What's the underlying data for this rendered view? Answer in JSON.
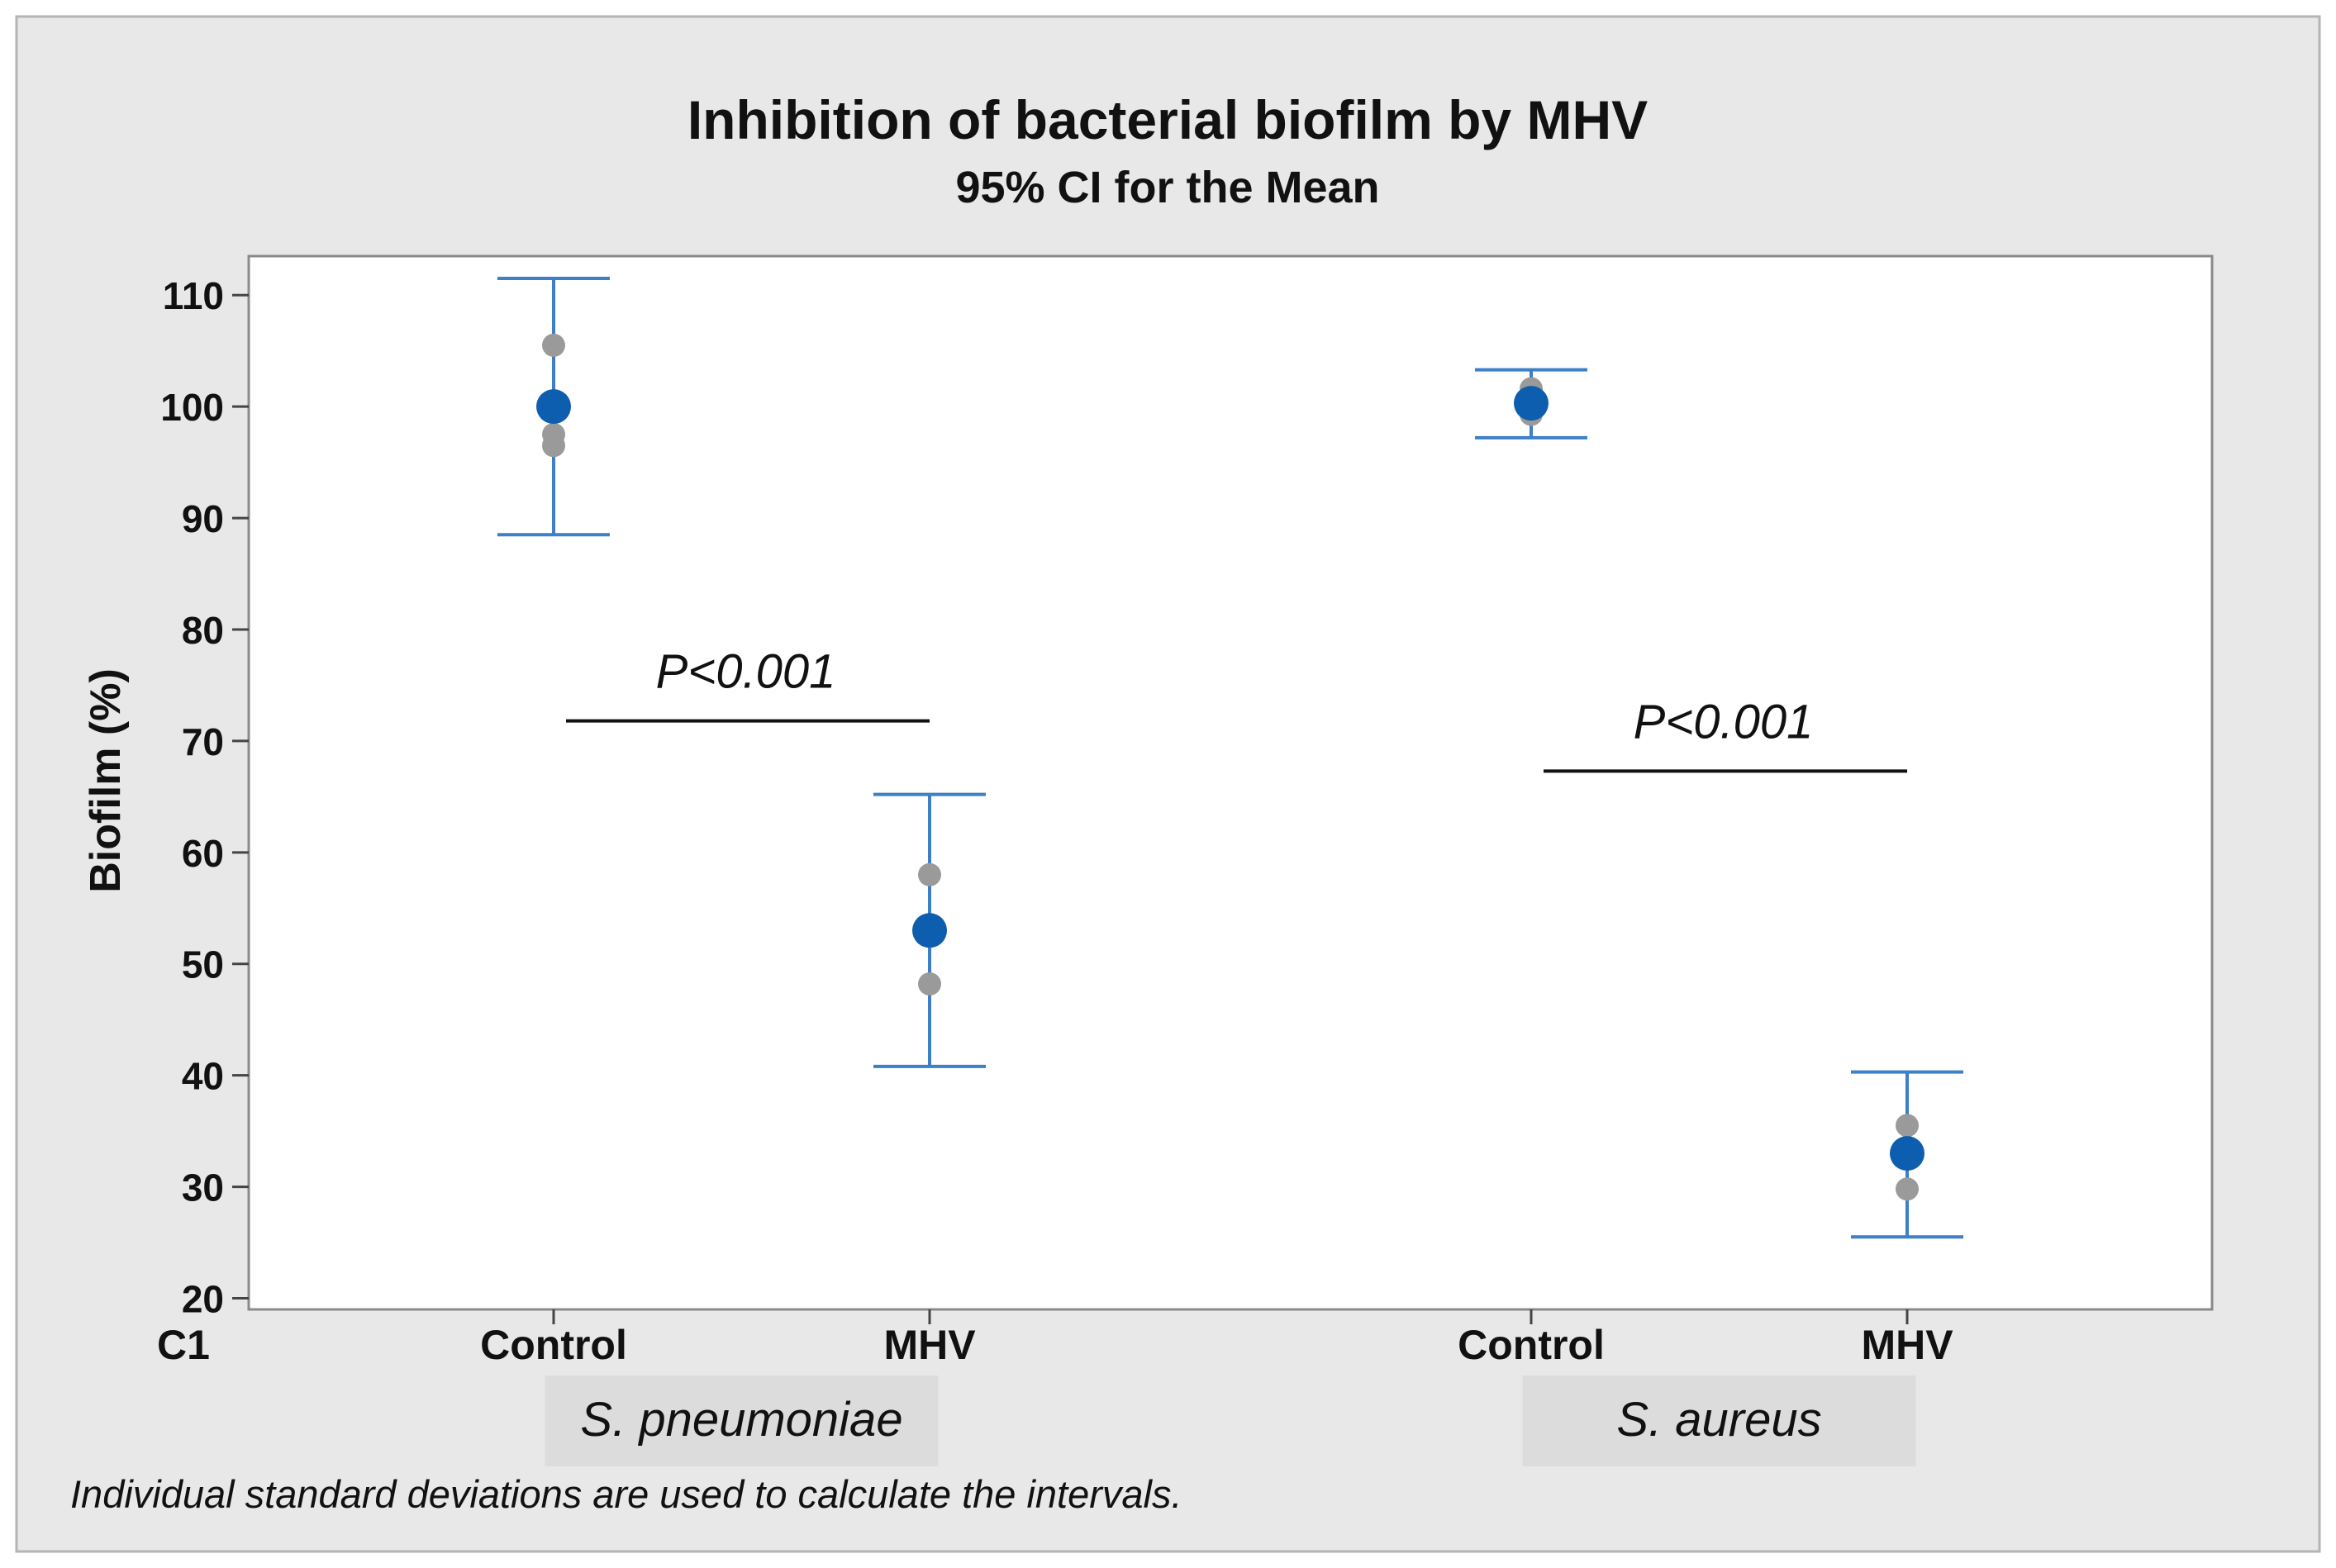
{
  "chart_data": {
    "type": "interval",
    "title": "Inhibition of bacterial biofilm by MHV",
    "subtitle": "95% CI for the Mean",
    "ylabel": "Biofilm (%)",
    "xlabel": "C1",
    "ylim": [
      19,
      113.5
    ],
    "yticks": [
      20,
      30,
      40,
      50,
      60,
      70,
      80,
      90,
      100,
      110
    ],
    "grid": false,
    "groups": [
      {
        "name": "S. pneumoniae",
        "categories": [
          "Control",
          "MHV"
        ],
        "points": [
          {
            "category": "Control",
            "mean": 100,
            "ci": [
              88.5,
              111.5
            ],
            "observations": [
              105.5,
              97.5,
              96.5
            ]
          },
          {
            "category": "MHV",
            "mean": 53,
            "ci": [
              40.8,
              65.2
            ],
            "observations": [
              58,
              53,
              48.2
            ]
          }
        ]
      },
      {
        "name": "S. aureus",
        "categories": [
          "Control",
          "MHV"
        ],
        "points": [
          {
            "category": "Control",
            "mean": 100.3,
            "ci": [
              97.2,
              103.3
            ],
            "observations": [
              101.6,
              100.4,
              99.3
            ]
          },
          {
            "category": "MHV",
            "mean": 33,
            "ci": [
              25.5,
              40.3
            ],
            "observations": [
              35.5,
              33.5,
              29.8
            ]
          }
        ]
      }
    ],
    "annotations": [
      {
        "text": "P<0.001",
        "group": "S. pneumoniae",
        "y": 71.8
      },
      {
        "text": "P<0.001",
        "group": "S. aureus",
        "y": 67.3
      }
    ],
    "footnote": "Individual standard deviations are used to calculate the intervals.",
    "colors": {
      "mean_marker": "#0d5eaf",
      "interval": "#3d7fc8",
      "observation": "#9a9a9a",
      "frame_background": "#e8e8e8",
      "plot_background": "#ffffff",
      "group_label_background": "#dcdcdc"
    }
  }
}
